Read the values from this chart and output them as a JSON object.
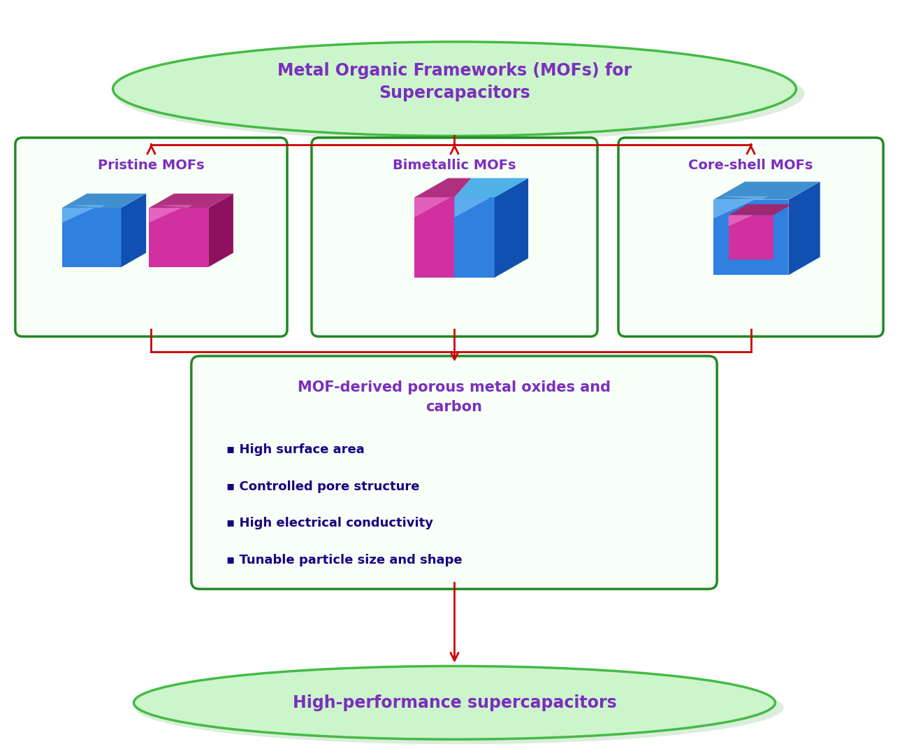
{
  "title_ellipse": "Metal Organic Frameworks (MOFs) for\nSupercapacitors",
  "bottom_ellipse": "High-performance supercapacitors",
  "box1_title": "Pristine MOFs",
  "box2_title": "Bimetallic MOFs",
  "box3_title": "Core-shell MOFs",
  "center_box_title": "MOF-derived porous metal oxides and\ncarbon",
  "center_box_bullets": [
    "High surface area",
    "Controlled pore structure",
    "High electrical conductivity",
    "Tunable particle size and shape"
  ],
  "bg_color": "#ffffff",
  "ellipse_fill": "#ccf5cc",
  "ellipse_edge": "#44bb44",
  "box_fill": "#f8fff8",
  "box_edge": "#228822",
  "title_color": "#7b2fbe",
  "bullet_color": "#1a0080",
  "arrow_color": "#cc0000",
  "center_title_color": "#7b2fbe"
}
